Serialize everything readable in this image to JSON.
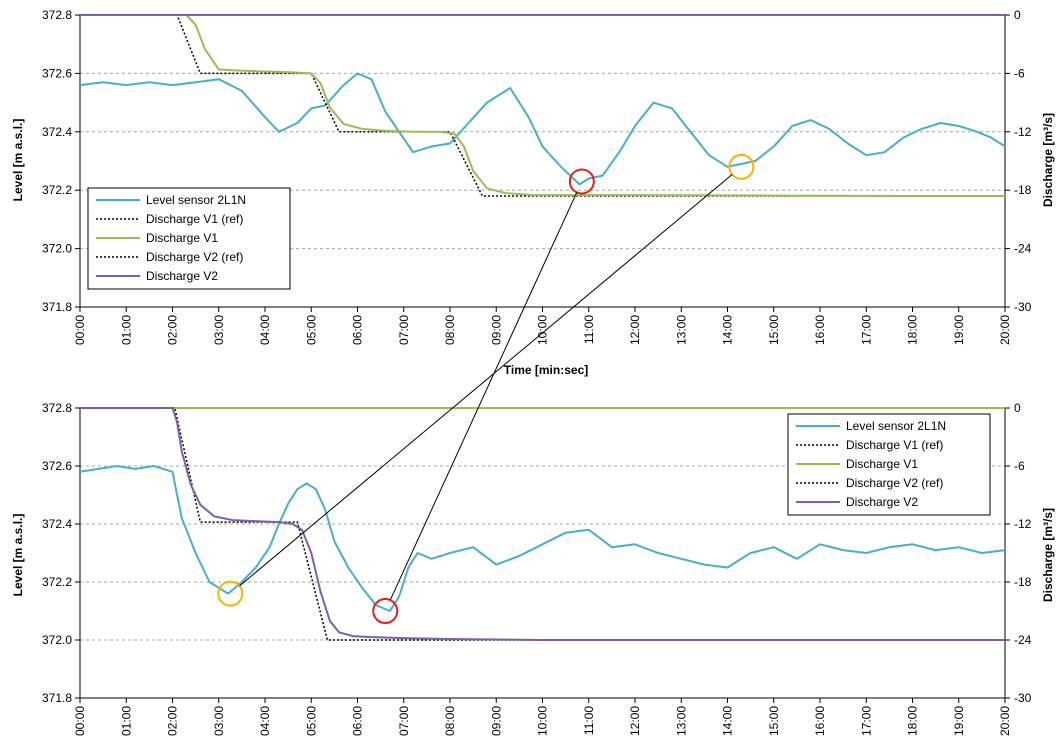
{
  "colors": {
    "level": "#4aaec6",
    "ref": "#000000",
    "v1": "#9bbb59",
    "v2": "#7f60a8",
    "red_marker": "#e02020",
    "yellow_marker": "#f5b400",
    "grid": "#a6a6a6"
  },
  "chart_data": [
    {
      "type": "line",
      "xlabel": "Time [min:sec]",
      "ylabel_left": "Level [m a.s.l.]",
      "ylabel_right": "Discharge [m³/s]",
      "ylim_left": [
        371.8,
        372.8
      ],
      "ylim_right": [
        -30,
        0
      ],
      "yticks_left": [
        "372.8",
        "372.6",
        "372.4",
        "372.2",
        "372.0",
        "371.8"
      ],
      "yticks_right": [
        "0",
        "-6",
        "-12",
        "-18",
        "-24",
        "-30"
      ],
      "xlim": [
        0,
        20
      ],
      "xticks": [
        "00:00",
        "01:00",
        "02:00",
        "03:00",
        "04:00",
        "05:00",
        "06:00",
        "07:00",
        "08:00",
        "09:00",
        "10:00",
        "11:00",
        "12:00",
        "13:00",
        "14:00",
        "15:00",
        "16:00",
        "17:00",
        "18:00",
        "19:00",
        "20:00"
      ],
      "grid": "horizontal",
      "legend_position": "bottom-left",
      "series": [
        {
          "name": "Level sensor 2L1N",
          "axis": "left",
          "color_key": "level",
          "style": "solid",
          "x": [
            0,
            0.5,
            1,
            1.5,
            2,
            2.5,
            3,
            3.5,
            4,
            4.3,
            4.7,
            5,
            5.3,
            5.7,
            6,
            6.3,
            6.6,
            6.9,
            7.2,
            7.6,
            8,
            8.4,
            8.8,
            9.3,
            9.7,
            10,
            10.4,
            10.8,
            11,
            11.3,
            11.7,
            12,
            12.4,
            12.8,
            13.2,
            13.6,
            14,
            14.3,
            14.6,
            15,
            15.4,
            15.8,
            16.2,
            16.6,
            17,
            17.4,
            17.8,
            18.2,
            18.6,
            19,
            19.4,
            19.7,
            20
          ],
          "y": [
            372.56,
            372.57,
            372.56,
            372.57,
            372.56,
            372.57,
            372.58,
            372.54,
            372.45,
            372.4,
            372.43,
            372.48,
            372.49,
            372.56,
            372.6,
            372.58,
            372.47,
            372.4,
            372.33,
            372.35,
            372.36,
            372.43,
            372.5,
            372.55,
            372.45,
            372.35,
            372.28,
            372.22,
            372.24,
            372.25,
            372.34,
            372.42,
            372.5,
            372.48,
            372.4,
            372.32,
            372.28,
            372.29,
            372.3,
            372.35,
            372.42,
            372.44,
            372.41,
            372.36,
            372.32,
            372.33,
            372.38,
            372.41,
            372.43,
            372.42,
            372.4,
            372.38,
            372.35
          ]
        },
        {
          "name": "Discharge V1 (ref)",
          "axis": "right",
          "color_key": "ref",
          "style": "dotted",
          "x": [
            0,
            2.1,
            2.6,
            5.0,
            5.6,
            8.0,
            8.7,
            20
          ],
          "y": [
            0,
            0,
            -6,
            -6,
            -12,
            -12,
            -18.6,
            -18.6
          ]
        },
        {
          "name": "Discharge V1",
          "axis": "right",
          "color_key": "v1",
          "style": "solid",
          "x": [
            0,
            2.3,
            2.5,
            2.7,
            3.0,
            3.4,
            4.0,
            4.6,
            5.0,
            5.2,
            5.4,
            5.7,
            6.1,
            6.6,
            7.2,
            7.8,
            8.1,
            8.3,
            8.5,
            8.8,
            9.2,
            9.8,
            10.5,
            12,
            15,
            18,
            20
          ],
          "y": [
            0,
            0,
            -1,
            -3.5,
            -5.6,
            -5.7,
            -5.8,
            -5.9,
            -6.0,
            -7,
            -9.5,
            -11.2,
            -11.7,
            -11.9,
            -12,
            -12,
            -12.2,
            -13.5,
            -16,
            -17.8,
            -18.3,
            -18.5,
            -18.5,
            -18.5,
            -18.55,
            -18.6,
            -18.6
          ]
        },
        {
          "name": "Discharge V2 (ref)",
          "axis": "right",
          "color_key": "ref",
          "style": "dotted",
          "x": [
            0,
            20
          ],
          "y": [
            0,
            0
          ]
        },
        {
          "name": "Discharge V2",
          "axis": "right",
          "color_key": "v2",
          "style": "solid",
          "x": [
            0,
            20
          ],
          "y": [
            0,
            0
          ]
        }
      ],
      "markers": [
        {
          "color_key": "red_marker",
          "x": 10.85,
          "y": 372.23
        },
        {
          "color_key": "yellow_marker",
          "x": 14.3,
          "y": 372.28
        }
      ]
    },
    {
      "type": "line",
      "xlabel": "",
      "ylabel_left": "Level [m a.s.l.]",
      "ylabel_right": "Discharge [m³/s]",
      "ylim_left": [
        371.8,
        372.8
      ],
      "ylim_right": [
        -30,
        0
      ],
      "yticks_left": [
        "372.8",
        "372.6",
        "372.4",
        "372.2",
        "372.0",
        "371.8"
      ],
      "yticks_right": [
        "0",
        "-6",
        "-12",
        "-18",
        "-24",
        "-30"
      ],
      "xlim": [
        0,
        20
      ],
      "xticks": [
        "00:00",
        "01:00",
        "02:00",
        "03:00",
        "04:00",
        "05:00",
        "06:00",
        "07:00",
        "08:00",
        "09:00",
        "10:00",
        "11:00",
        "12:00",
        "13:00",
        "14:00",
        "15:00",
        "16:00",
        "17:00",
        "18:00",
        "19:00",
        "20:00"
      ],
      "grid": "horizontal",
      "legend_position": "top-right",
      "series": [
        {
          "name": "Level sensor 2L1N",
          "axis": "left",
          "color_key": "level",
          "style": "solid",
          "x": [
            0,
            0.4,
            0.8,
            1.2,
            1.6,
            2.0,
            2.1,
            2.2,
            2.3,
            2.5,
            2.8,
            3.0,
            3.2,
            3.5,
            3.8,
            4.1,
            4.3,
            4.5,
            4.7,
            4.9,
            5.1,
            5.3,
            5.5,
            5.8,
            6.1,
            6.4,
            6.7,
            6.9,
            7.1,
            7.3,
            7.6,
            8.0,
            8.5,
            9,
            9.5,
            10,
            10.5,
            11,
            11.5,
            12,
            12.5,
            13,
            13.5,
            14,
            14.5,
            15,
            15.5,
            16,
            16.5,
            17,
            17.5,
            18,
            18.5,
            19,
            19.5,
            20
          ],
          "y": [
            372.58,
            372.59,
            372.6,
            372.59,
            372.6,
            372.58,
            372.5,
            372.42,
            372.38,
            372.3,
            372.2,
            372.18,
            372.16,
            372.2,
            372.25,
            372.32,
            372.4,
            372.47,
            372.52,
            372.54,
            372.52,
            372.45,
            372.34,
            372.25,
            372.18,
            372.12,
            372.1,
            372.15,
            372.25,
            372.3,
            372.28,
            372.3,
            372.32,
            372.26,
            372.29,
            372.33,
            372.37,
            372.38,
            372.32,
            372.33,
            372.3,
            372.28,
            372.26,
            372.25,
            372.3,
            372.32,
            372.28,
            372.33,
            372.31,
            372.3,
            372.32,
            372.33,
            372.31,
            372.32,
            372.3,
            372.31
          ]
        },
        {
          "name": "Discharge V1 (ref)",
          "axis": "right",
          "color_key": "ref",
          "style": "dotted",
          "x": [
            0,
            20
          ],
          "y": [
            0,
            0
          ]
        },
        {
          "name": "Discharge V1",
          "axis": "right",
          "color_key": "v1",
          "style": "solid",
          "x": [
            0,
            20
          ],
          "y": [
            0,
            0
          ]
        },
        {
          "name": "Discharge V2 (ref)",
          "axis": "right",
          "color_key": "ref",
          "style": "dotted",
          "x": [
            0,
            2.05,
            2.6,
            4.7,
            5.35,
            20
          ],
          "y": [
            0,
            0,
            -11.8,
            -11.8,
            -24,
            -24
          ]
        },
        {
          "name": "Discharge V2",
          "axis": "right",
          "color_key": "v2",
          "style": "solid",
          "x": [
            0,
            2.0,
            2.1,
            2.2,
            2.4,
            2.6,
            2.9,
            3.3,
            3.8,
            4.3,
            4.6,
            4.8,
            5.0,
            5.2,
            5.4,
            5.6,
            5.9,
            6.3,
            7,
            8,
            10,
            15,
            20
          ],
          "y": [
            0,
            0,
            -1.5,
            -4.5,
            -8,
            -10,
            -11.2,
            -11.6,
            -11.7,
            -11.8,
            -12,
            -12.6,
            -15,
            -19,
            -22,
            -23.2,
            -23.6,
            -23.7,
            -23.8,
            -23.9,
            -24,
            -24,
            -24
          ]
        }
      ],
      "markers": [
        {
          "color_key": "yellow_marker",
          "x": 3.25,
          "y": 372.16
        },
        {
          "color_key": "red_marker",
          "x": 6.6,
          "y": 372.1
        }
      ]
    }
  ]
}
